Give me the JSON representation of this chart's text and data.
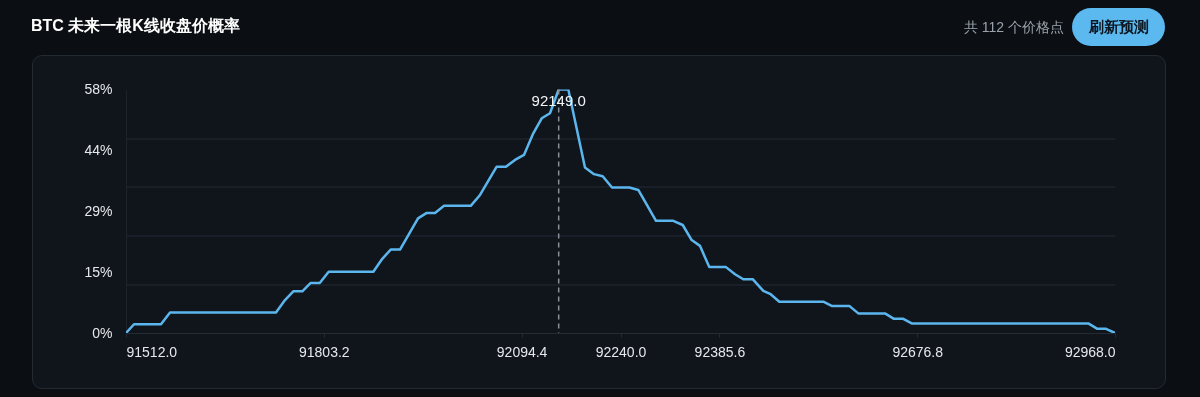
{
  "chart_data": {
    "type": "line",
    "title": "BTC 未来一根K线收盘价概率",
    "annotations": [
      "共 112 个价格点",
      "刷新预测"
    ],
    "series": [
      {
        "color": "#5cb6ee",
        "x": [
          91512,
          91523.8,
          91563.5,
          91576.8,
          91732.8,
          91746.1,
          91758.3,
          91771.6,
          91783.9,
          91797.2,
          91810.4,
          91876.1,
          91889.3,
          91901.7,
          91915.4,
          91941.9,
          91954.7,
          91966.9,
          91980.2,
          92019.5,
          92033.2,
          92057.7,
          92071.4,
          92084.7,
          92097.9,
          92111.6,
          92124,
          92136.2,
          92149,
          92163.2,
          92187.7,
          92201,
          92213.8,
          92227.5,
          92253,
          92266.2,
          92292.3,
          92317.7,
          92331.6,
          92344.8,
          92357,
          92370.7,
          92395.3,
          92408.6,
          92420.8,
          92434.6,
          92450.2,
          92461.1,
          92473.8,
          92538.6,
          92550.9,
          92576.8,
          92590.1,
          92629.4,
          92642.6,
          92656.3,
          92668.7,
          92928.7,
          92942,
          92954.8,
          92968
        ],
        "values": [
          0,
          2.1,
          2.1,
          4.9,
          4.9,
          7.9,
          10,
          10,
          12,
          12,
          14.7,
          14.7,
          17.8,
          20,
          20,
          27.5,
          28.8,
          28.8,
          30.5,
          30.5,
          33.1,
          39.9,
          39.9,
          41.5,
          42.7,
          47.9,
          51.5,
          52.7,
          58.4,
          58.4,
          39.7,
          38.1,
          37.6,
          34.9,
          34.9,
          34.3,
          26.9,
          26.9,
          25.9,
          22.3,
          20.9,
          15.8,
          15.8,
          14.1,
          12.9,
          12.9,
          10.1,
          9.3,
          7.5,
          7.5,
          6.5,
          6.5,
          4.7,
          4.7,
          3.4,
          3.4,
          2.3,
          2.3,
          1,
          1,
          0
        ]
      }
    ],
    "xlim": [
      91512,
      92968
    ],
    "xticks": [
      {
        "value": 91512,
        "label": "91512.0"
      },
      {
        "value": 91803.2,
        "label": "91803.2"
      },
      {
        "value": 92094.4,
        "label": "92094.4"
      },
      {
        "value": 92240,
        "label": "92240.0"
      },
      {
        "value": 92385.6,
        "label": "92385.6"
      },
      {
        "value": 92676.8,
        "label": "92676.8"
      },
      {
        "value": 92968,
        "label": "92968.0"
      }
    ],
    "ylim": [
      0,
      58.4
    ],
    "yticks": [
      {
        "value": 0,
        "label": "0%"
      },
      {
        "value": 11.68,
        "label": null
      },
      {
        "value": 14.6,
        "label": "15%"
      },
      {
        "value": 23.36,
        "label": null
      },
      {
        "value": 29.2,
        "label": "29%"
      },
      {
        "value": 35.04,
        "label": null
      },
      {
        "value": 43.8,
        "label": "44%"
      },
      {
        "value": 46.72,
        "label": null
      },
      {
        "value": 58.4,
        "label": "58%"
      }
    ],
    "ref_lines": [
      {
        "axis": "x",
        "value": 92149,
        "label": "92149.0",
        "color": "#8a8f96",
        "line_style": "dashed"
      }
    ],
    "grid": "y",
    "marker": "none",
    "line_style": "solid"
  }
}
